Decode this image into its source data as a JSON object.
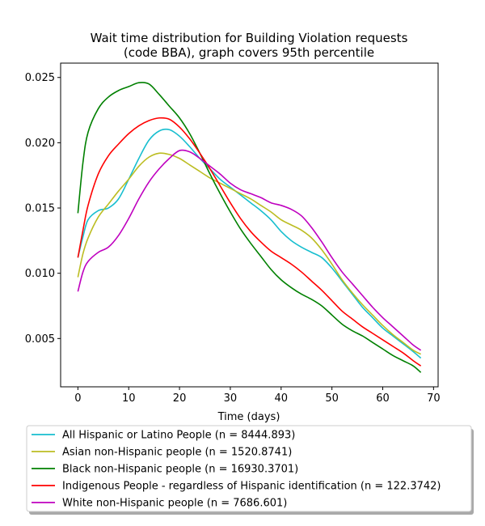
{
  "chart_data": {
    "type": "line",
    "title_lines": [
      "Wait time distribution  for Building Violation  requests",
      "(code BBA), graph covers 95th percentile"
    ],
    "xlabel": "Time (days)",
    "ylabel": "",
    "xlim": [
      -3.4,
      70.9
    ],
    "ylim": [
      0.0013,
      0.0261
    ],
    "xticks": [
      0,
      10,
      20,
      30,
      40,
      50,
      60,
      70
    ],
    "yticks": [
      0.005,
      0.01,
      0.015,
      0.02,
      0.025
    ],
    "ytick_labels": [
      "0.005",
      "0.010",
      "0.015",
      "0.020",
      "0.025"
    ],
    "grid": false,
    "legend_position": "bottom",
    "series": [
      {
        "name": "All Hispanic or Latino People (n = 8444.893)",
        "color": "#17becf",
        "points": [
          [
            0,
            0.0112
          ],
          [
            1,
            0.0128
          ],
          [
            2,
            0.0141
          ],
          [
            4,
            0.0148
          ],
          [
            6,
            0.015
          ],
          [
            8,
            0.0157
          ],
          [
            10,
            0.0172
          ],
          [
            12,
            0.0188
          ],
          [
            14,
            0.0202
          ],
          [
            16,
            0.0209
          ],
          [
            18,
            0.021
          ],
          [
            20,
            0.0205
          ],
          [
            22,
            0.0197
          ],
          [
            24,
            0.0188
          ],
          [
            26,
            0.018
          ],
          [
            28,
            0.0172
          ],
          [
            30,
            0.0166
          ],
          [
            32,
            0.016
          ],
          [
            34,
            0.0154
          ],
          [
            36,
            0.0148
          ],
          [
            38,
            0.0141
          ],
          [
            40,
            0.0132
          ],
          [
            42,
            0.0125
          ],
          [
            44,
            0.012
          ],
          [
            46,
            0.0116
          ],
          [
            48,
            0.0112
          ],
          [
            50,
            0.0104
          ],
          [
            52,
            0.0094
          ],
          [
            54,
            0.0084
          ],
          [
            56,
            0.0074
          ],
          [
            58,
            0.0066
          ],
          [
            60,
            0.0058
          ],
          [
            62,
            0.0052
          ],
          [
            64,
            0.0046
          ],
          [
            66,
            0.004
          ],
          [
            67.5,
            0.0035
          ]
        ]
      },
      {
        "name": "Asian non-Hispanic people (n = 1520.8741)",
        "color": "#bcbd22",
        "points": [
          [
            0,
            0.0097
          ],
          [
            1,
            0.0115
          ],
          [
            2,
            0.0127
          ],
          [
            4,
            0.0143
          ],
          [
            6,
            0.0153
          ],
          [
            8,
            0.0163
          ],
          [
            10,
            0.0172
          ],
          [
            12,
            0.0182
          ],
          [
            14,
            0.0189
          ],
          [
            16,
            0.0192
          ],
          [
            18,
            0.0191
          ],
          [
            20,
            0.0188
          ],
          [
            22,
            0.0183
          ],
          [
            24,
            0.0178
          ],
          [
            26,
            0.0173
          ],
          [
            28,
            0.0169
          ],
          [
            30,
            0.0165
          ],
          [
            32,
            0.0161
          ],
          [
            34,
            0.0157
          ],
          [
            36,
            0.0152
          ],
          [
            38,
            0.0147
          ],
          [
            40,
            0.0141
          ],
          [
            42,
            0.0137
          ],
          [
            44,
            0.0133
          ],
          [
            46,
            0.0127
          ],
          [
            48,
            0.0118
          ],
          [
            50,
            0.0107
          ],
          [
            52,
            0.0095
          ],
          [
            54,
            0.0085
          ],
          [
            56,
            0.0076
          ],
          [
            58,
            0.0068
          ],
          [
            60,
            0.006
          ],
          [
            62,
            0.0053
          ],
          [
            64,
            0.0047
          ],
          [
            66,
            0.0041
          ],
          [
            67.5,
            0.0038
          ]
        ]
      },
      {
        "name": "Black non-Hispanic people (n = 16930.3701)",
        "color": "#008000",
        "points": [
          [
            0,
            0.0146
          ],
          [
            1,
            0.0185
          ],
          [
            2,
            0.0208
          ],
          [
            4,
            0.0226
          ],
          [
            6,
            0.0235
          ],
          [
            8,
            0.024
          ],
          [
            10,
            0.0243
          ],
          [
            12,
            0.0246
          ],
          [
            14,
            0.0245
          ],
          [
            16,
            0.0237
          ],
          [
            18,
            0.0228
          ],
          [
            20,
            0.0219
          ],
          [
            22,
            0.0207
          ],
          [
            24,
            0.0192
          ],
          [
            26,
            0.0176
          ],
          [
            28,
            0.0161
          ],
          [
            30,
            0.0147
          ],
          [
            32,
            0.0134
          ],
          [
            34,
            0.0123
          ],
          [
            36,
            0.0113
          ],
          [
            38,
            0.0103
          ],
          [
            40,
            0.0095
          ],
          [
            42,
            0.0089
          ],
          [
            44,
            0.0084
          ],
          [
            46,
            0.008
          ],
          [
            48,
            0.0075
          ],
          [
            50,
            0.0068
          ],
          [
            52,
            0.0061
          ],
          [
            54,
            0.0056
          ],
          [
            56,
            0.0052
          ],
          [
            58,
            0.0047
          ],
          [
            60,
            0.0042
          ],
          [
            62,
            0.0037
          ],
          [
            64,
            0.0033
          ],
          [
            66,
            0.0029
          ],
          [
            67.5,
            0.0024
          ]
        ]
      },
      {
        "name": "Indigenous People - regardless of Hispanic identification (n = 122.3742)",
        "color": "#ff0000",
        "points": [
          [
            0,
            0.0112
          ],
          [
            1,
            0.0133
          ],
          [
            2,
            0.0152
          ],
          [
            4,
            0.0176
          ],
          [
            6,
            0.019
          ],
          [
            8,
            0.0199
          ],
          [
            10,
            0.0207
          ],
          [
            12,
            0.0213
          ],
          [
            14,
            0.0217
          ],
          [
            16,
            0.0219
          ],
          [
            18,
            0.0218
          ],
          [
            20,
            0.0212
          ],
          [
            22,
            0.0203
          ],
          [
            24,
            0.0192
          ],
          [
            26,
            0.018
          ],
          [
            28,
            0.0167
          ],
          [
            30,
            0.0154
          ],
          [
            32,
            0.0142
          ],
          [
            34,
            0.0132
          ],
          [
            36,
            0.0124
          ],
          [
            38,
            0.0117
          ],
          [
            40,
            0.0112
          ],
          [
            42,
            0.0107
          ],
          [
            44,
            0.0101
          ],
          [
            46,
            0.0094
          ],
          [
            48,
            0.0087
          ],
          [
            50,
            0.0079
          ],
          [
            52,
            0.0071
          ],
          [
            54,
            0.0065
          ],
          [
            56,
            0.0059
          ],
          [
            58,
            0.0054
          ],
          [
            60,
            0.0049
          ],
          [
            62,
            0.0044
          ],
          [
            64,
            0.0039
          ],
          [
            66,
            0.0033
          ],
          [
            67.5,
            0.0029
          ]
        ]
      },
      {
        "name": "White non-Hispanic people (n = 7686.601)",
        "color": "#bf00bf",
        "points": [
          [
            0,
            0.0086
          ],
          [
            1,
            0.0101
          ],
          [
            2,
            0.0109
          ],
          [
            4,
            0.0116
          ],
          [
            6,
            0.012
          ],
          [
            8,
            0.0129
          ],
          [
            10,
            0.0142
          ],
          [
            12,
            0.0157
          ],
          [
            14,
            0.017
          ],
          [
            16,
            0.018
          ],
          [
            18,
            0.0188
          ],
          [
            20,
            0.0194
          ],
          [
            22,
            0.0193
          ],
          [
            24,
            0.0188
          ],
          [
            26,
            0.0182
          ],
          [
            28,
            0.0176
          ],
          [
            30,
            0.0169
          ],
          [
            32,
            0.0164
          ],
          [
            34,
            0.0161
          ],
          [
            36,
            0.0158
          ],
          [
            38,
            0.0154
          ],
          [
            40,
            0.0152
          ],
          [
            42,
            0.0149
          ],
          [
            44,
            0.0144
          ],
          [
            46,
            0.0135
          ],
          [
            48,
            0.0124
          ],
          [
            50,
            0.0112
          ],
          [
            52,
            0.0101
          ],
          [
            54,
            0.0092
          ],
          [
            56,
            0.0083
          ],
          [
            58,
            0.0074
          ],
          [
            60,
            0.0066
          ],
          [
            62,
            0.0059
          ],
          [
            64,
            0.0052
          ],
          [
            66,
            0.0045
          ],
          [
            67.5,
            0.0041
          ]
        ]
      }
    ]
  }
}
